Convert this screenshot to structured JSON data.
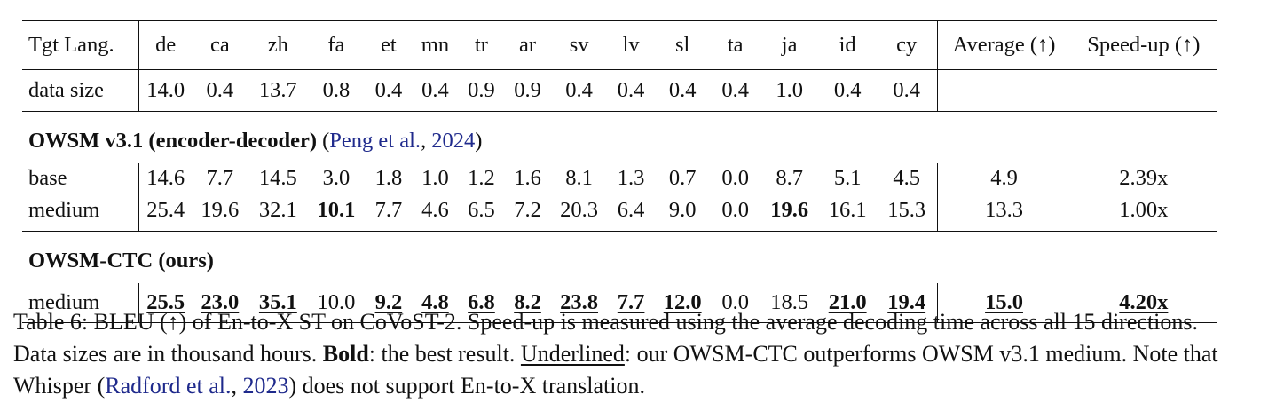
{
  "table": {
    "header": {
      "row_label": "Tgt Lang.",
      "languages": [
        "de",
        "ca",
        "zh",
        "fa",
        "et",
        "mn",
        "tr",
        "ar",
        "sv",
        "lv",
        "sl",
        "ta",
        "ja",
        "id",
        "cy"
      ],
      "average": "Average (↑)",
      "speedup": "Speed-up (↑)"
    },
    "data_size": {
      "label": "data size",
      "values": [
        "14.0",
        "0.4",
        "13.7",
        "0.8",
        "0.4",
        "0.4",
        "0.9",
        "0.9",
        "0.4",
        "0.4",
        "0.4",
        "0.4",
        "1.0",
        "0.4",
        "0.4"
      ]
    },
    "groups": [
      {
        "title": "OWSM v3.1 (encoder-decoder)",
        "cite_open": "(",
        "cite_author": "Peng et al.",
        "cite_sep": ", ",
        "cite_year": "2024",
        "cite_close": ")",
        "rows": [
          {
            "label": "base",
            "values": [
              "14.6",
              "7.7",
              "14.5",
              "3.0",
              "1.8",
              "1.0",
              "1.2",
              "1.6",
              "8.1",
              "1.3",
              "0.7",
              "0.0",
              "8.7",
              "5.1",
              "4.5"
            ],
            "bold": [
              false,
              false,
              false,
              false,
              false,
              false,
              false,
              false,
              false,
              false,
              false,
              false,
              false,
              false,
              false
            ],
            "underline": [
              false,
              false,
              false,
              false,
              false,
              false,
              false,
              false,
              false,
              false,
              false,
              false,
              false,
              false,
              false
            ],
            "average": "4.9",
            "speedup": "2.39x",
            "average_style": "",
            "speedup_style": ""
          },
          {
            "label": "medium",
            "values": [
              "25.4",
              "19.6",
              "32.1",
              "10.1",
              "7.7",
              "4.6",
              "6.5",
              "7.2",
              "20.3",
              "6.4",
              "9.0",
              "0.0",
              "19.6",
              "16.1",
              "15.3"
            ],
            "bold": [
              false,
              false,
              false,
              true,
              false,
              false,
              false,
              false,
              false,
              false,
              false,
              false,
              true,
              false,
              false
            ],
            "underline": [
              false,
              false,
              false,
              false,
              false,
              false,
              false,
              false,
              false,
              false,
              false,
              false,
              false,
              false,
              false
            ],
            "average": "13.3",
            "speedup": "1.00x",
            "average_style": "",
            "speedup_style": ""
          }
        ]
      },
      {
        "title": "OWSM-CTC (ours)",
        "rows": [
          {
            "label": "medium",
            "values": [
              "25.5",
              "23.0",
              "35.1",
              "10.0",
              "9.2",
              "4.8",
              "6.8",
              "8.2",
              "23.8",
              "7.7",
              "12.0",
              "0.0",
              "18.5",
              "21.0",
              "19.4"
            ],
            "bold": [
              true,
              true,
              true,
              false,
              true,
              true,
              true,
              true,
              true,
              true,
              true,
              false,
              false,
              true,
              true
            ],
            "underline": [
              true,
              true,
              true,
              false,
              true,
              true,
              true,
              true,
              true,
              true,
              true,
              false,
              false,
              true,
              true
            ],
            "average": "15.0",
            "speedup": "4.20x",
            "average_style": "bu",
            "speedup_style": "bu"
          }
        ]
      }
    ]
  },
  "caption": {
    "part1": "Table 6: BLEU (↑) of En-to-X ST on CoVoST-2. Speed-up is measured using the average decoding time across all 15 directions. Data sizes are in thousand hours. ",
    "bold_word": "Bold",
    "part2": ": the best result. ",
    "underlined_word": "Underlined",
    "part3": ": our OWSM-CTC outperforms OWSM v3.1 medium. Note that Whisper (",
    "cite_author": "Radford et al.",
    "cite_sep": ", ",
    "cite_year": "2023",
    "part4": ") does not support En-to-X translation."
  },
  "colors": {
    "text": "#111111",
    "citation": "#1f2a8c"
  }
}
